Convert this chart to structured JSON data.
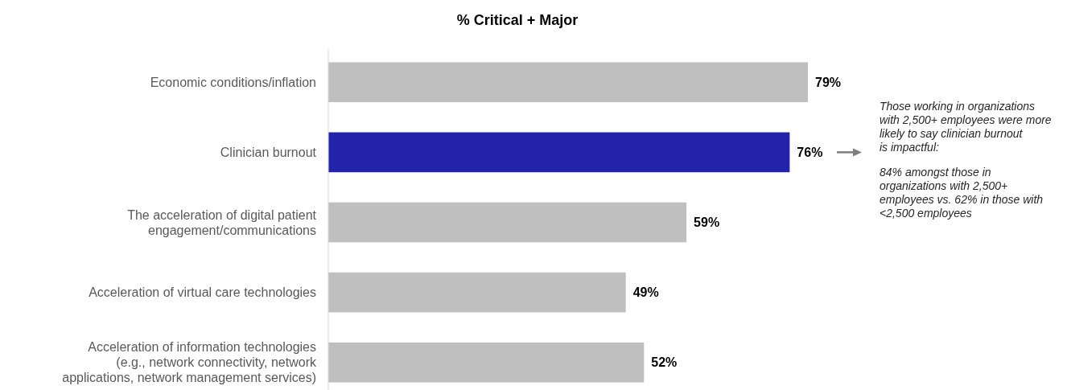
{
  "chart_data": {
    "type": "bar",
    "orientation": "horizontal",
    "title": "% Critical + Major",
    "categories": [
      "Economic conditions/inflation",
      "Clinician burnout",
      "The acceleration of digital patient engagement/communications",
      "Acceleration of virtual care technologies",
      "Acceleration of information technologies (e.g., network connectivity, network applications, network management services)"
    ],
    "values": [
      79,
      76,
      59,
      49,
      52
    ],
    "colors": [
      "#bfbfbf",
      "#2222aa",
      "#bfbfbf",
      "#bfbfbf",
      "#bfbfbf"
    ],
    "value_labels": [
      "79%",
      "76%",
      "59%",
      "49%",
      "52%"
    ],
    "annotations": [
      "Those working in organizations with 2,500+ employees were more likely to say clinician burnout is impactful:",
      "84% amongst those in organizations with 2,500+ employees vs. 62% in those with <2,500 employees"
    ]
  }
}
